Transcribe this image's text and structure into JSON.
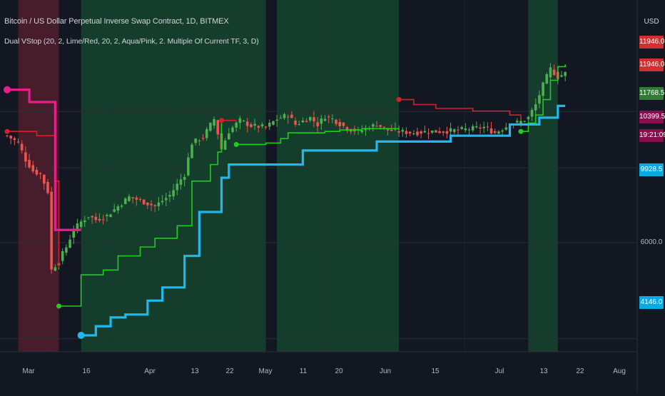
{
  "header": {
    "title": "Bitcoin / US Dollar Perpetual Inverse Swap Contract, 1D, BITMEX",
    "indicator": "Dual VStop (20, 2, Lime/Red, 20, 2, Aqua/Pink, 2. Multiple Of Current TF, 3, D)"
  },
  "currency": "USD",
  "colors": {
    "background": "#131722",
    "up_candle": "#4caf50",
    "down_candle": "#ef5350",
    "stop_short_tf_up": "#1fcc1f",
    "stop_short_tf_down": "#d3202f",
    "stop_long_tf_up": "#20b8ef",
    "stop_long_tf_down": "#e91e8c",
    "bg_up": "#14402c",
    "bg_down": "#4a1e2c"
  },
  "price_labels": [
    {
      "text": "11946.0",
      "bg": "#d32f2f"
    },
    {
      "text": "11946.0",
      "bg": "#d32f2f"
    },
    {
      "text": "11768.5",
      "bg": "#2e7d32"
    },
    {
      "text": "10399.5",
      "bg": "#880e4f"
    },
    {
      "text": "19:21:09",
      "bg": "#880e4f"
    },
    {
      "text": "9928.5",
      "bg": "#0ba9e3"
    },
    {
      "text": "6000.0",
      "bg": ""
    },
    {
      "text": "4146.0",
      "bg": "#0ba9e3"
    }
  ],
  "chart_data": {
    "type": "line",
    "title": "Bitcoin / US Dollar Perpetual Inverse Swap Contract, 1D, BITMEX",
    "x_tick_labels": [
      "Mar",
      "16",
      "Apr",
      "13",
      "22",
      "May",
      "11",
      "20",
      "Jun",
      "15",
      "Jul",
      "13",
      "22",
      "Aug"
    ],
    "y_tick_labels": [
      "4146.0",
      "6000.0",
      "9928.5",
      "10399.5",
      "11768.5",
      "11946.0"
    ],
    "y_scale": "log",
    "background_regions": [
      {
        "from_day": 0,
        "to_day": 3,
        "state": "none"
      },
      {
        "from_day": 3,
        "to_day": 14,
        "state": "down"
      },
      {
        "from_day": 20,
        "to_day": 70,
        "state": "up"
      },
      {
        "from_day": 73,
        "to_day": 106,
        "state": "up"
      },
      {
        "from_day": 141,
        "to_day": 149,
        "state": "up"
      }
    ],
    "series": [
      {
        "name": "",
        "kind": "close",
        "points": [
          [
            0,
            9050
          ],
          [
            3,
            8800
          ],
          [
            5,
            8250
          ],
          [
            7,
            7900
          ],
          [
            9,
            7800
          ],
          [
            11,
            7300
          ],
          [
            12,
            5400
          ],
          [
            14,
            5600
          ],
          [
            16,
            5900
          ],
          [
            18,
            6300
          ],
          [
            20,
            6500
          ],
          [
            22,
            6650
          ],
          [
            24,
            6550
          ],
          [
            27,
            6650
          ],
          [
            30,
            6900
          ],
          [
            33,
            7150
          ],
          [
            36,
            7050
          ],
          [
            40,
            6900
          ],
          [
            44,
            7200
          ],
          [
            48,
            7800
          ],
          [
            50,
            8800
          ],
          [
            53,
            9000
          ],
          [
            56,
            9650
          ],
          [
            58,
            8600
          ],
          [
            60,
            9200
          ],
          [
            63,
            9600
          ],
          [
            66,
            9400
          ],
          [
            70,
            9350
          ],
          [
            73,
            9650
          ],
          [
            76,
            9800
          ],
          [
            78,
            9450
          ],
          [
            82,
            9700
          ],
          [
            84,
            9450
          ],
          [
            86,
            9750
          ],
          [
            88,
            9650
          ],
          [
            92,
            9300
          ],
          [
            95,
            9200
          ],
          [
            98,
            9350
          ],
          [
            100,
            9450
          ],
          [
            103,
            9250
          ],
          [
            106,
            9200
          ],
          [
            110,
            9150
          ],
          [
            114,
            9200
          ],
          [
            118,
            9200
          ],
          [
            122,
            9250
          ],
          [
            126,
            9300
          ],
          [
            129,
            9350
          ],
          [
            132,
            9150
          ],
          [
            136,
            9450
          ],
          [
            139,
            9550
          ],
          [
            141,
            9700
          ],
          [
            143,
            10200
          ],
          [
            145,
            11000
          ],
          [
            147,
            11700
          ],
          [
            149,
            11350
          ],
          [
            151,
            11500
          ]
        ]
      },
      {
        "name": "",
        "kind": "stop_short_tf",
        "segments": [
          {
            "dir": "down",
            "points": [
              [
                0,
                9200
              ],
              [
                6,
                9200
              ],
              [
                8,
                9050
              ],
              [
                13,
                7600
              ],
              [
                14,
                5450
              ]
            ]
          },
          {
            "dir": "up",
            "points": [
              [
                14,
                4700
              ],
              [
                18,
                4700
              ],
              [
                20,
                5300
              ],
              [
                26,
                5400
              ],
              [
                30,
                5700
              ],
              [
                36,
                5900
              ],
              [
                40,
                6100
              ],
              [
                46,
                6400
              ],
              [
                50,
                7600
              ],
              [
                55,
                8100
              ],
              [
                57,
                8500
              ],
              [
                58,
                9500
              ]
            ]
          },
          {
            "dir": "down",
            "points": [
              [
                58,
                9600
              ],
              [
                60,
                9600
              ],
              [
                62,
                9600
              ]
            ]
          },
          {
            "dir": "up",
            "points": [
              [
                62,
                8750
              ],
              [
                66,
                8750
              ],
              [
                70,
                8800
              ],
              [
                74,
                8950
              ],
              [
                76,
                9150
              ],
              [
                80,
                9150
              ],
              [
                86,
                9200
              ],
              [
                90,
                9250
              ],
              [
                96,
                9300
              ],
              [
                106,
                9250
              ]
            ]
          },
          {
            "dir": "down",
            "points": [
              [
                106,
                10400
              ],
              [
                110,
                10200
              ],
              [
                116,
                10050
              ],
              [
                126,
                9950
              ],
              [
                136,
                9800
              ],
              [
                139,
                9700
              ]
            ]
          },
          {
            "dir": "up",
            "points": [
              [
                139,
                9200
              ],
              [
                141,
                9500
              ],
              [
                143,
                9800
              ],
              [
                145,
                10400
              ],
              [
                147,
                11200
              ],
              [
                149,
                11800
              ],
              [
                151,
                11900
              ]
            ]
          }
        ]
      },
      {
        "name": "",
        "kind": "stop_long_tf",
        "segments": [
          {
            "dir": "down",
            "points": [
              [
                0,
                10800
              ],
              [
                3,
                10800
              ],
              [
                6,
                10300
              ],
              [
                12,
                10300
              ],
              [
                13,
                6300
              ],
              [
                20,
                6300
              ]
            ]
          },
          {
            "dir": "up",
            "points": [
              [
                20,
                4200
              ],
              [
                24,
                4350
              ],
              [
                28,
                4500
              ],
              [
                32,
                4550
              ],
              [
                38,
                4800
              ],
              [
                42,
                5050
              ],
              [
                48,
                5700
              ],
              [
                52,
                6750
              ],
              [
                58,
                7700
              ],
              [
                60,
                8100
              ],
              [
                74,
                8100
              ],
              [
                80,
                8550
              ],
              [
                100,
                8850
              ],
              [
                120,
                9050
              ],
              [
                136,
                9450
              ],
              [
                144,
                9700
              ],
              [
                149,
                10150
              ],
              [
                151,
                10150
              ]
            ]
          }
        ]
      }
    ]
  }
}
